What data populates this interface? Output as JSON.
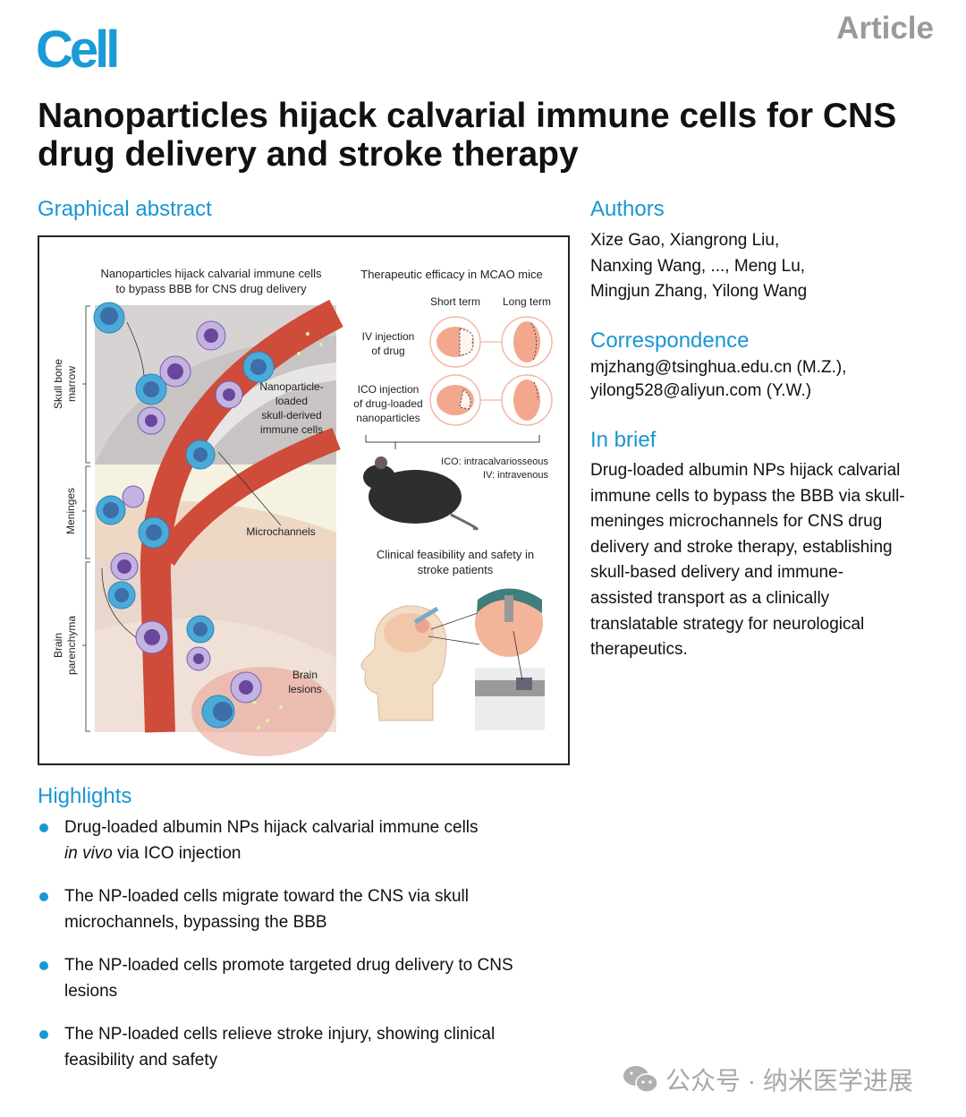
{
  "header": {
    "logo": "Cell",
    "article_type": "Article"
  },
  "title": "Nanoparticles hijack calvarial immune cells for CNS drug delivery and stroke therapy",
  "graphical_abstract": {
    "heading": "Graphical abstract",
    "left_title_1": "Nanoparticles hijack calvarial immune cells",
    "left_title_2": "to bypass BBB for CNS drug delivery",
    "regions": {
      "skull_1": "Skull bone",
      "skull_2": "marrow",
      "meninges": "Meninges",
      "brain_1": "Brain",
      "brain_2": "parenchyma"
    },
    "labels": {
      "np_1": "Nanoparticle-",
      "np_2": "loaded",
      "np_3": "skull-derived",
      "np_4": "immune cells",
      "microchannels": "Microchannels",
      "lesions_1": "Brain",
      "lesions_2": "lesions"
    },
    "right_title": "Therapeutic efficacy in MCAO mice",
    "short_term": "Short term",
    "long_term": "Long term",
    "iv_1": "IV injection",
    "iv_2": "of drug",
    "ico_1": "ICO injection",
    "ico_2": "of drug-loaded",
    "ico_3": "nanoparticles",
    "abbr_ico": "ICO: intracalvariosseous",
    "abbr_iv": "IV: intravenous",
    "clinical_1": "Clinical feasibility and safety in",
    "clinical_2": "stroke patients"
  },
  "authors": {
    "heading": "Authors",
    "lines": [
      "Xize Gao, Xiangrong Liu,",
      "Nanxing Wang, ..., Meng Lu,",
      "Mingjun Zhang, Yilong Wang"
    ]
  },
  "correspondence": {
    "heading": "Correspondence",
    "lines": [
      "mjzhang@tsinghua.edu.cn (M.Z.),",
      "yilong528@aliyun.com (Y.W.)"
    ]
  },
  "in_brief": {
    "heading": "In brief",
    "lines": [
      "Drug-loaded albumin NPs hijack calvarial",
      "immune cells to bypass the BBB via skull-",
      "meninges microchannels for CNS drug",
      "delivery and stroke therapy, establishing",
      "skull-based delivery and immune-",
      "assisted transport as a clinically",
      "translatable strategy for neurological",
      "therapeutics."
    ]
  },
  "highlights": {
    "heading": "Highlights",
    "items": [
      {
        "a": "Drug-loaded albumin NPs hijack calvarial immune cells",
        "b_italic": "in vivo",
        "b": " via ICO injection"
      },
      {
        "a": "The NP-loaded cells migrate toward the CNS via skull",
        "b": "microchannels, bypassing the BBB"
      },
      {
        "a": "The NP-loaded cells promote targeted drug delivery to CNS",
        "b": "lesions"
      },
      {
        "a": "The NP-loaded cells relieve stroke injury, showing clinical",
        "b": "feasibility and safety"
      }
    ]
  },
  "watermark": {
    "icon": "wechat-icon",
    "text": "公众号 · 纳米医学进展"
  },
  "colors": {
    "accent": "#1a96d4",
    "vessel": "#cc4a3a"
  }
}
